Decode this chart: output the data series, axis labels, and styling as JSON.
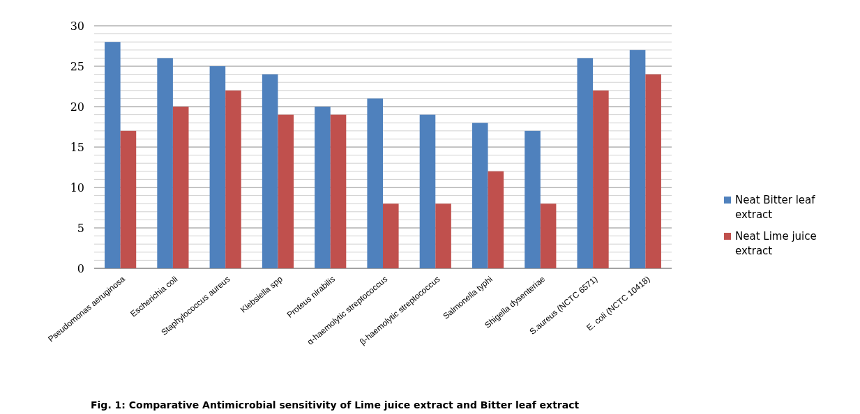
{
  "chart_data": {
    "type": "bar",
    "title": "Fig. 1: Comparative Antimicrobial sensitivity of Lime juice extract and Bitter leaf extract",
    "categories": [
      "Pseudomonas aeruginosa",
      "Escherichia coli",
      "Staphylococcus aureus",
      "Klebsiella spp",
      "Proteus nirabilis",
      "α-haemolytic streptococcus",
      "β-haemolytic streptococcus",
      "Salmonella typhi",
      "Shigella dysenteriae",
      "S.aureus (NCTC 6571)",
      "E. coli   (NCTC 10418)"
    ],
    "series": [
      {
        "name": "Neat Bitter leaf extract",
        "color": "#4f81bd",
        "values": [
          28,
          26,
          25,
          24,
          20,
          21,
          19,
          18,
          17,
          26,
          27
        ]
      },
      {
        "name": "Neat Lime juice extract",
        "color": "#c0504d",
        "values": [
          17,
          20,
          22,
          19,
          19,
          8,
          8,
          12,
          8,
          22,
          24
        ]
      }
    ],
    "ylim": [
      0,
      30
    ],
    "yticks": [
      0,
      {
        "value": 1,
        "label": null
      },
      {
        "value": 2,
        "label": null
      },
      {
        "value": 3,
        "label": null
      },
      {
        "value": 4,
        "label": null
      },
      5,
      {
        "value": 6,
        "label": null
      },
      {
        "value": 7,
        "label": null
      },
      {
        "value": 8,
        "label": null
      },
      {
        "value": 9,
        "label": null
      },
      10,
      {
        "value": 11,
        "label": null
      },
      {
        "value": 12,
        "label": null
      },
      {
        "value": 13,
        "label": null
      },
      {
        "value": 14,
        "label": null
      },
      15,
      {
        "value": 16,
        "label": null
      },
      {
        "value": 17,
        "label": null
      },
      {
        "value": 18,
        "label": null
      },
      {
        "value": 19,
        "label": null
      },
      20,
      {
        "value": 21,
        "label": null
      },
      {
        "value": 22,
        "label": null
      },
      {
        "value": 23,
        "label": null
      },
      {
        "value": 24,
        "label": null
      },
      25,
      {
        "value": 26,
        "label": null
      },
      {
        "value": 27,
        "label": null
      },
      {
        "value": 28,
        "label": null
      },
      {
        "value": 29,
        "label": null
      },
      30
    ],
    "grid": "y",
    "legend": "right"
  }
}
